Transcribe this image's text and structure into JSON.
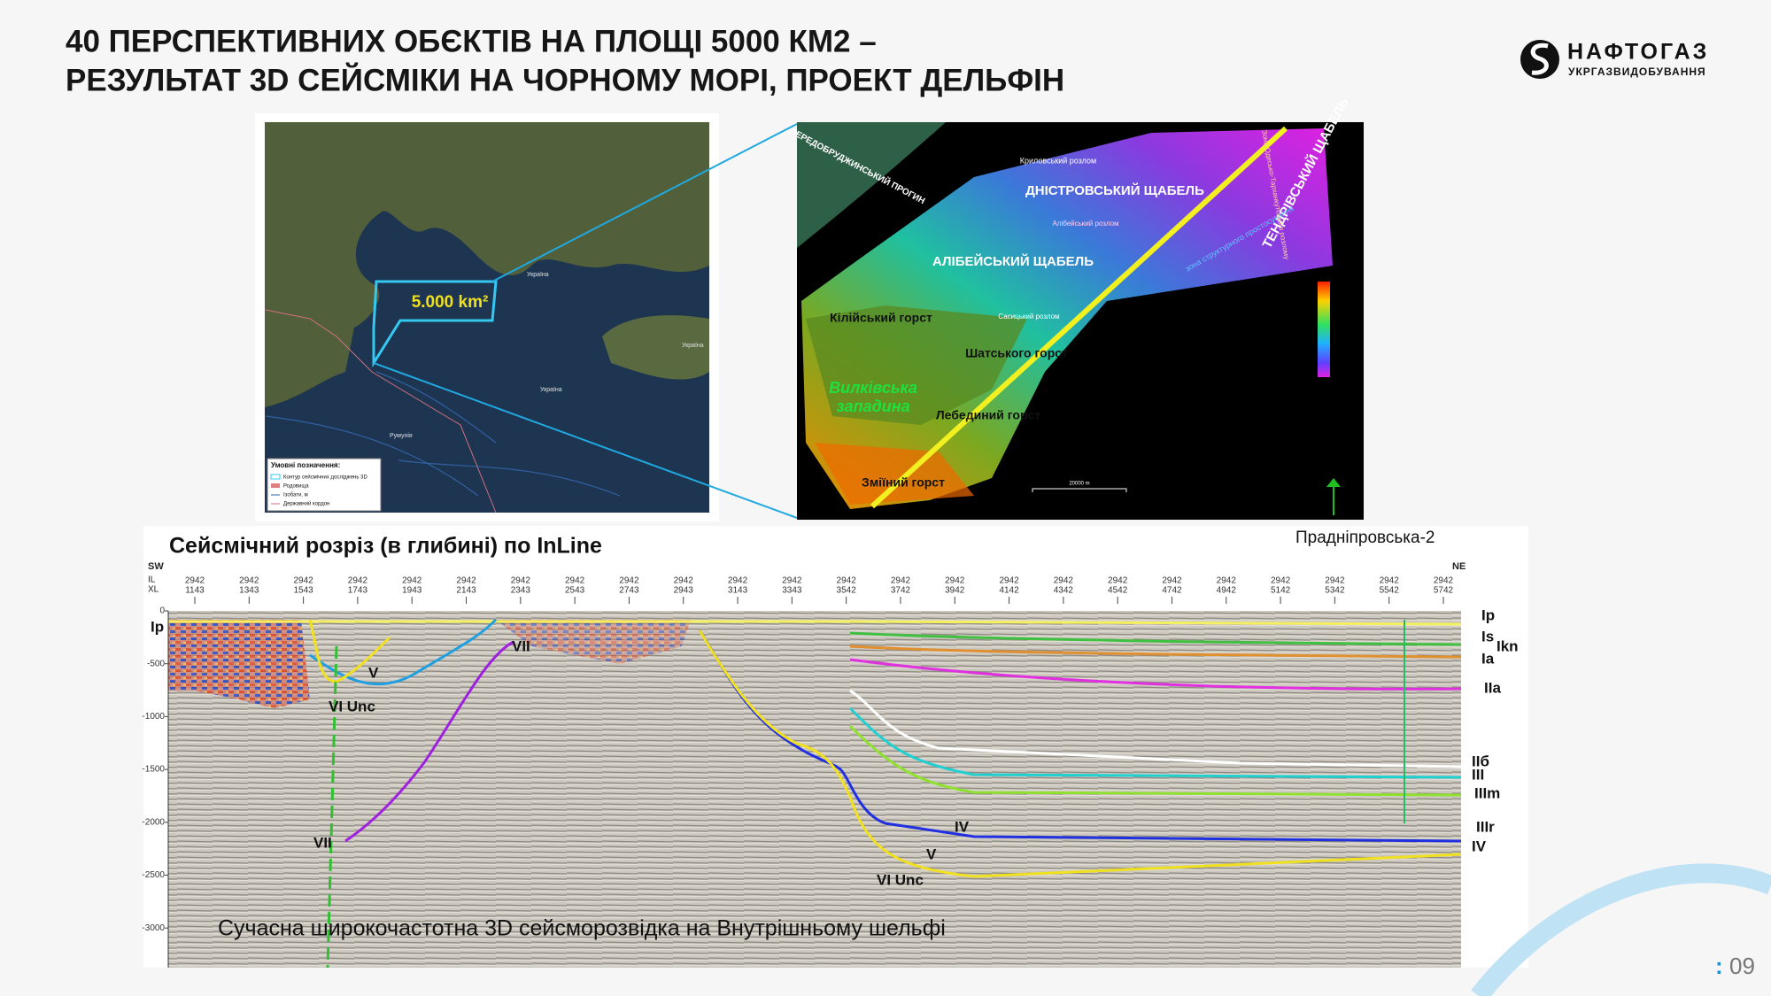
{
  "header": {
    "title_lines": [
      "40 ПЕРСПЕКТИВНИХ ОБЄКТІВ НА ПЛОЩІ 5000 КМ2 –",
      "РЕЗУЛЬТАТ 3D СЕЙСМІКИ НА ЧОРНОМУ МОРІ, ПРОЕКТ ДЕЛЬФІН"
    ]
  },
  "logo": {
    "name": "НАФТОГАЗ",
    "subtitle": "УКРГАЗВИДОБУВАННЯ"
  },
  "map": {
    "area_label": "5.000 km²",
    "places": [
      "Україна",
      "Україна",
      "Румунія",
      "Україна"
    ],
    "legend": {
      "title": "Умовні позначення:",
      "items": [
        "Контур сейсмічних досліджень 3D",
        "Родовища",
        "Ізобати, м",
        "Державний кордон"
      ]
    }
  },
  "structure_map": {
    "labels": {
      "foredeep": "ПЕРЕДОБРУДЖИНСЬКИЙ ПРОГИН",
      "krylov_fault": "Криловський розлом",
      "dnister": "ДНІСТРОВСЬКИЙ ЩАБЕЛЬ",
      "tendra": "ТЕНДРІВСЬКИЙ ЩАБЕЛЬ",
      "alibei_fault": "Алібейський розлом",
      "alibei": "АЛІБЕЙСЬКИЙ ЩАБЕЛЬ",
      "kiliia": "Кілійський горст",
      "sasyk_fault": "Сасицький розлом",
      "shatsky": "Шатського горст",
      "vylkove": [
        "Вилківська",
        "западина"
      ],
      "lebedyny": "Лебединий горст",
      "zmiinyi": "Зміїний горст",
      "shear_zone": "зона структурного простосування",
      "odesa_fault": "Зона Одесько-Тарханкутського розлому",
      "scale": "20000 m"
    }
  },
  "seismic": {
    "title": "Сейсмічний розріз (в глибині) по InLine",
    "well": "Праднiпровська-2",
    "caption": "Сучасна широкочастотна 3D сейсморозвідка на Внутрішньому шельфі",
    "sw": "SW",
    "ne": "NE",
    "il_label": "IL",
    "xl_label": "XL",
    "il": "2942",
    "xl": [
      "1143",
      "1343",
      "1543",
      "1743",
      "1943",
      "2143",
      "2343",
      "2543",
      "2743",
      "2943",
      "3143",
      "3343",
      "3542",
      "3742",
      "3942",
      "4142",
      "4342",
      "4542",
      "4742",
      "4942",
      "5142",
      "5342",
      "5542",
      "5742"
    ],
    "depth_ticks": [
      "0",
      "-500",
      "-1000",
      "-1500",
      "-2000",
      "-2500",
      "-3000"
    ],
    "left_horizon": "Ip",
    "right_horizons": [
      "Ip",
      "Is",
      "Ikn",
      "Ia",
      "IIa",
      "IIб",
      "III",
      "IIIm",
      "IIIr",
      "IV"
    ],
    "inner_labels": [
      "VII",
      "V",
      "VI Unc",
      "VII",
      "IV",
      "V",
      "VI Unc"
    ]
  },
  "page": {
    "marker": ":",
    "number": "09"
  }
}
